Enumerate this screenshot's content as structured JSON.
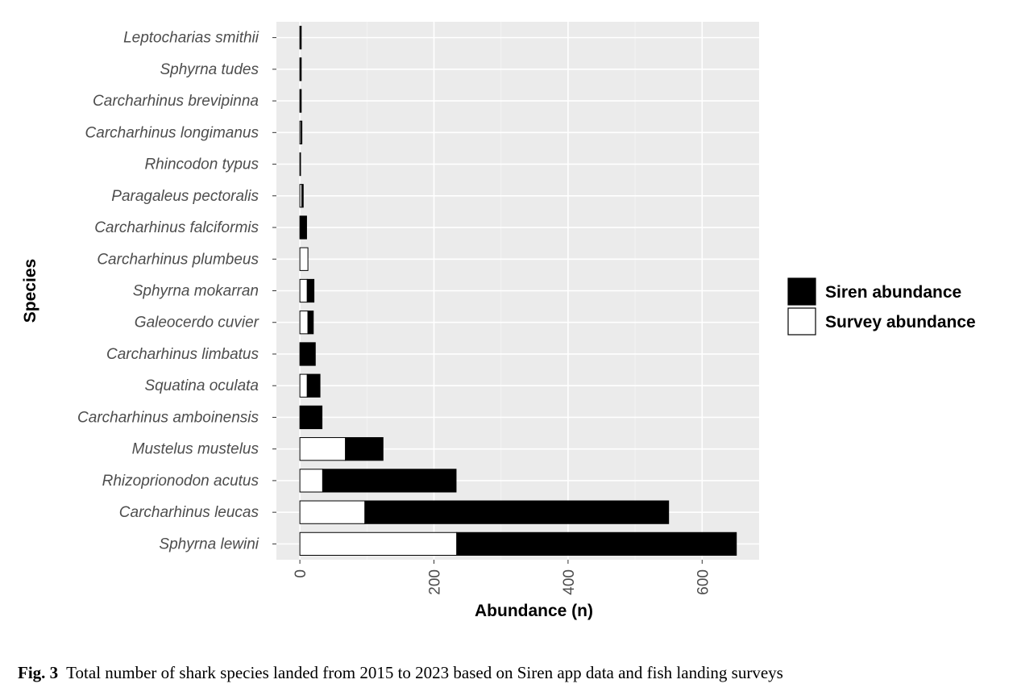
{
  "chart_data": {
    "type": "bar",
    "orientation": "horizontal",
    "stacked": true,
    "categories": [
      "Leptocharias smithii",
      "Sphyrna tudes",
      "Carcharhinus brevipinna",
      "Carcharhinus longimanus",
      "Rhincodon typus",
      "Paragaleus pectoralis",
      "Carcharhinus falciformis",
      "Carcharhinus plumbeus",
      "Sphyrna mokarran",
      "Galeocerdo cuvier",
      "Carcharhinus limbatus",
      "Squatina oculata",
      "Carcharhinus amboinensis",
      "Mustelus mustelus",
      "Rhizoprionodon acutus",
      "Carcharhinus leucas",
      "Sphyrna lewini"
    ],
    "series": [
      {
        "name": "Survey abundance",
        "color": "#ffffff",
        "values": [
          0,
          0,
          0,
          2,
          0,
          3,
          0,
          12,
          11,
          12,
          0,
          11,
          0,
          68,
          34,
          97,
          234
        ]
      },
      {
        "name": "Siren abundance",
        "color": "#000000",
        "values": [
          2,
          2,
          2,
          1,
          1,
          2,
          10,
          0,
          10,
          8,
          23,
          19,
          33,
          56,
          199,
          453,
          417
        ]
      }
    ],
    "xlabel": "Abundance (n)",
    "ylabel": "Species",
    "xlim": [
      -35,
      685
    ],
    "xticks": [
      0,
      200,
      400,
      600
    ],
    "grid": true,
    "legend_position": "right"
  },
  "caption": {
    "label": "Fig. 3",
    "text": "Total number of shark species landed from 2015 to 2023 based on Siren app data and fish landing surveys"
  }
}
